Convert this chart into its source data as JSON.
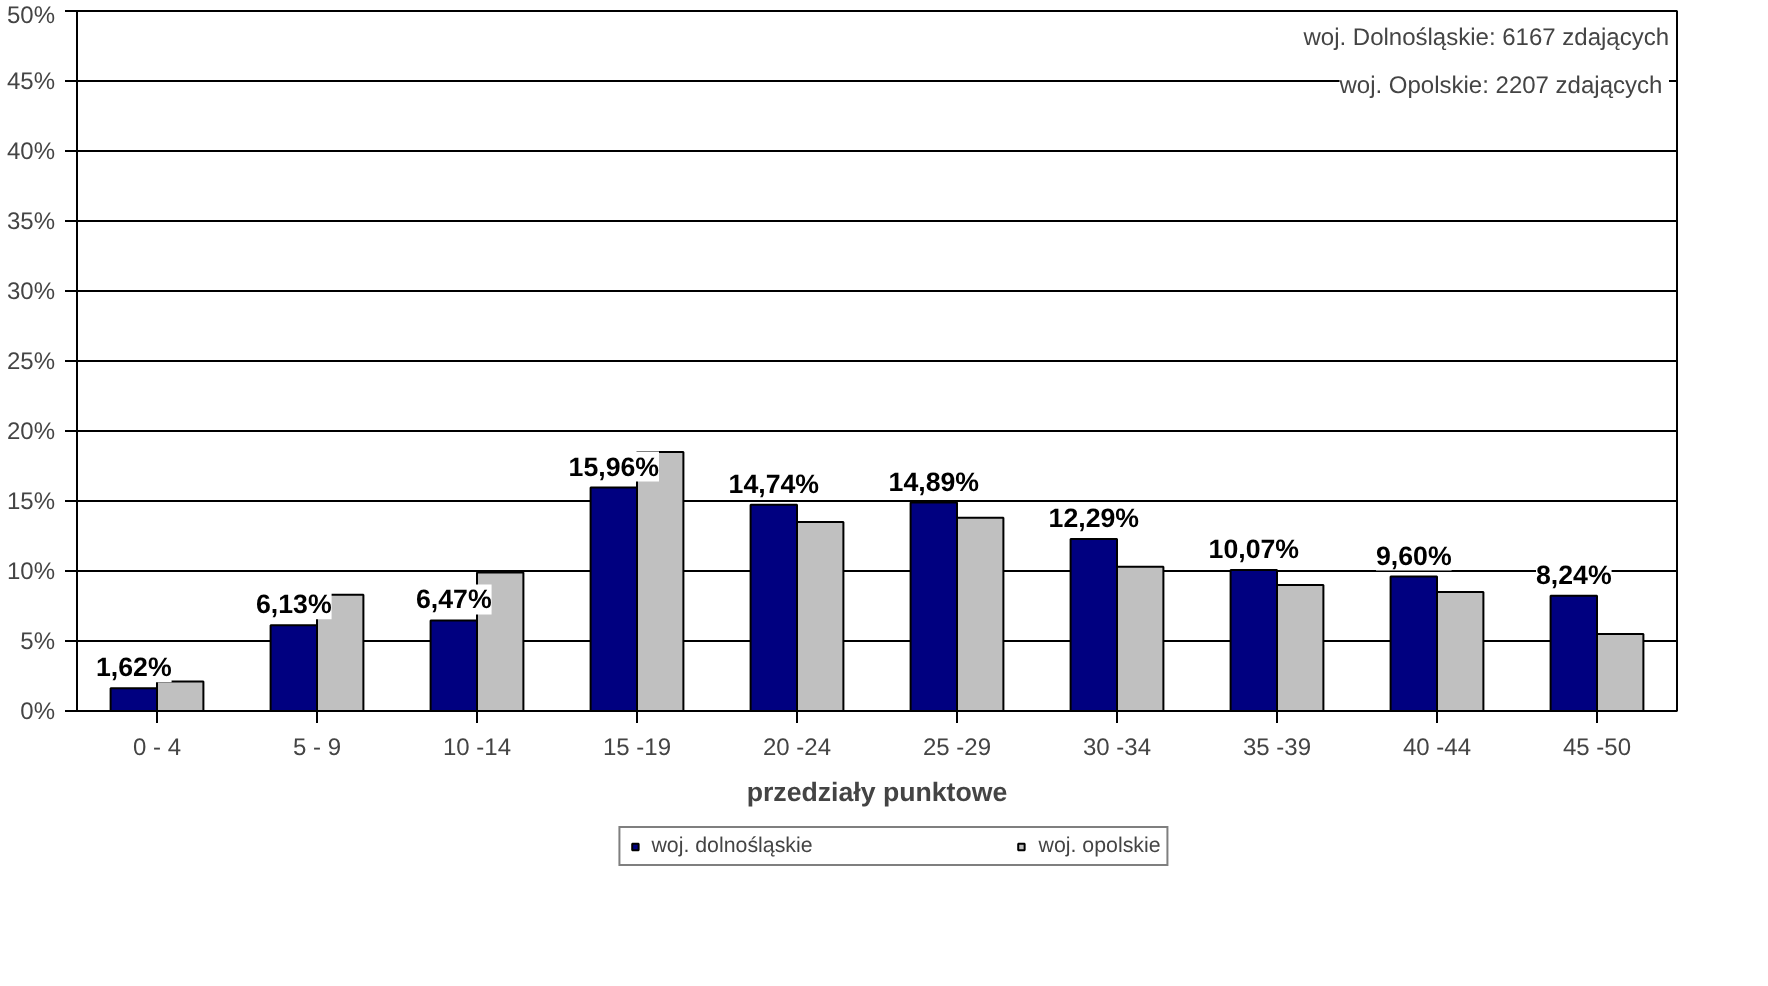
{
  "chart_data": {
    "type": "bar",
    "xlabel": "przedziały punktowe",
    "categories": [
      "0 - 4",
      "5 - 9",
      "10 -14",
      "15 -19",
      "20 -24",
      "25 -29",
      "30 -34",
      "35 -39",
      "40 -44",
      "45 -50"
    ],
    "series": [
      {
        "name": "woj. dolnośląskie",
        "color": "#000080",
        "values": [
          1.62,
          6.13,
          6.47,
          15.96,
          14.74,
          14.89,
          12.29,
          10.07,
          9.6,
          8.24
        ],
        "value_labels": [
          "1,62%",
          "6,13%",
          "6,47%",
          "15,96%",
          "14,74%",
          "14,89%",
          "12,29%",
          "10,07%",
          "9,60%",
          "8,24%"
        ]
      },
      {
        "name": "woj. opolskie",
        "color": "#c0c0c0",
        "values": [
          2.1,
          8.3,
          9.9,
          18.5,
          13.5,
          13.8,
          10.3,
          9.0,
          8.5,
          5.5
        ]
      }
    ],
    "ylim": [
      0,
      50
    ],
    "yticks": [
      {
        "value": 0,
        "label": "0%"
      },
      {
        "value": 5,
        "label": "5%"
      },
      {
        "value": 10,
        "label": "10%"
      },
      {
        "value": 15,
        "label": "15%"
      },
      {
        "value": 20,
        "label": "20%"
      },
      {
        "value": 25,
        "label": "25%"
      },
      {
        "value": 30,
        "label": "30%"
      },
      {
        "value": 35,
        "label": "35%"
      },
      {
        "value": 40,
        "label": "40%"
      },
      {
        "value": 45,
        "label": "45%"
      },
      {
        "value": 50,
        "label": "50%"
      }
    ],
    "grid": "y",
    "legend": "bottom",
    "annotations": [
      "woj. Dolnośląskie: 6167 zdających",
      "woj. Opolskie:  2207 zdających"
    ]
  }
}
